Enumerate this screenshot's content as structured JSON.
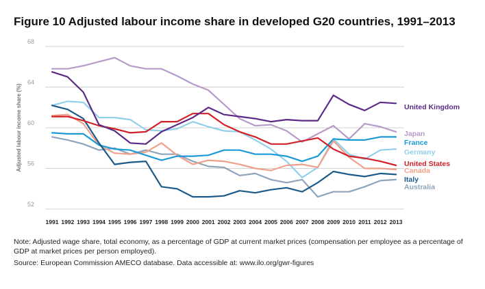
{
  "figure": {
    "title": "Figure 10  Adjusted labour income share in developed G20 countries, 1991–2013",
    "note": "Note: Adjusted wage share, total economy, as a percentage of GDP at current market prices (compensation per employee as a percentage of GDP at market prices per person employed).",
    "source": "Source: European Commission AMECO database. Data accessible at: www.ilo.org/gwr-figures"
  },
  "chart_data": {
    "type": "line",
    "title": "Adjusted labour income share in developed G20 countries, 1991–2013",
    "xlabel": "",
    "ylabel": "Adjusted labour income share (%)",
    "ylim": [
      52,
      68
    ],
    "yticks": [
      52,
      56,
      60,
      64,
      68
    ],
    "grid": true,
    "legend": "right, inline labels",
    "x": [
      "1991",
      "1992",
      "1993",
      "1994",
      "1995",
      "1996",
      "1997",
      "1998",
      "1999",
      "2000",
      "2001",
      "2002",
      "2003",
      "2004",
      "2005",
      "2006",
      "2007",
      "2008",
      "2009",
      "2010",
      "2011",
      "2012",
      "2013"
    ],
    "series": [
      {
        "name": "United Kingdom",
        "color": "#5b2a86",
        "values": [
          65.5,
          65.0,
          63.5,
          60.3,
          59.7,
          58.5,
          58.4,
          59.6,
          60.3,
          61.0,
          62.0,
          61.3,
          61.1,
          60.9,
          60.6,
          60.8,
          60.7,
          60.7,
          63.2,
          62.3,
          61.7,
          62.5,
          62.4
        ]
      },
      {
        "name": "Japan",
        "color": "#b89ac8",
        "values": [
          65.8,
          65.8,
          66.1,
          66.5,
          66.9,
          66.1,
          65.8,
          65.8,
          65.1,
          64.3,
          63.7,
          62.3,
          60.9,
          60.2,
          60.3,
          59.7,
          58.6,
          59.4,
          60.2,
          58.9,
          60.4,
          60.1,
          59.6
        ]
      },
      {
        "name": "France",
        "color": "#1a9ad6",
        "values": [
          59.5,
          59.4,
          59.4,
          58.3,
          57.9,
          57.8,
          57.3,
          56.8,
          57.2,
          57.2,
          57.3,
          57.8,
          57.8,
          57.4,
          57.4,
          57.2,
          56.7,
          57.2,
          58.9,
          58.8,
          58.8,
          59.1,
          59.1
        ]
      },
      {
        "name": "Germany",
        "color": "#8fd0ea",
        "values": [
          62.2,
          62.6,
          62.5,
          61.0,
          61.0,
          60.8,
          59.8,
          59.7,
          59.9,
          60.6,
          60.1,
          59.7,
          59.6,
          58.8,
          57.9,
          56.7,
          55.1,
          56.1,
          58.9,
          57.4,
          56.9,
          57.8,
          57.9
        ]
      },
      {
        "name": "United States",
        "color": "#d0212a",
        "values": [
          61.1,
          61.1,
          60.7,
          60.2,
          59.9,
          59.5,
          59.6,
          60.6,
          60.6,
          61.4,
          61.4,
          60.3,
          59.6,
          59.1,
          58.4,
          58.4,
          58.7,
          59.0,
          57.9,
          57.2,
          57.0,
          56.7,
          56.3
        ]
      },
      {
        "name": "Canada",
        "color": "#f0a08a",
        "values": [
          61.2,
          61.3,
          60.4,
          58.3,
          57.5,
          57.4,
          57.6,
          58.5,
          57.3,
          56.4,
          56.8,
          56.7,
          56.4,
          56.0,
          55.8,
          56.3,
          56.4,
          56.1,
          58.7,
          57.1,
          56.0,
          56.0,
          55.9
        ]
      },
      {
        "name": "Italy",
        "color": "#1a5a8a",
        "values": [
          62.2,
          61.8,
          60.9,
          58.5,
          56.4,
          56.6,
          56.7,
          54.2,
          54.0,
          53.2,
          53.2,
          53.3,
          53.8,
          53.6,
          53.9,
          54.1,
          53.7,
          54.6,
          55.7,
          55.4,
          55.2,
          55.5,
          55.4
        ]
      },
      {
        "name": "Australia",
        "color": "#8ea4ba",
        "values": [
          59.1,
          58.8,
          58.4,
          57.8,
          58.0,
          57.4,
          57.8,
          57.4,
          57.4,
          56.7,
          56.2,
          56.1,
          55.3,
          55.5,
          54.9,
          54.6,
          54.9,
          53.2,
          53.7,
          53.7,
          54.2,
          54.8,
          54.9
        ]
      }
    ]
  }
}
